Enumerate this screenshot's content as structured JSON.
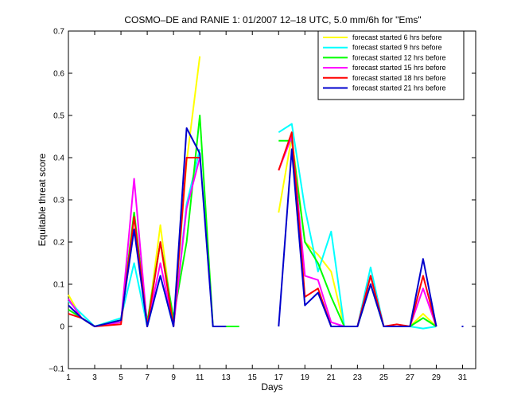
{
  "chart_data": {
    "type": "line",
    "title": "COSMO–DE and RANIE 1: 01/2007 12–18 UTC, 5.0 mm/6h for \"Ems\"",
    "xlabel": "Days",
    "ylabel": "Equitable threat score",
    "xlim": [
      1,
      32
    ],
    "ylim": [
      -0.1,
      0.7
    ],
    "x_ticks": [
      "1",
      "3",
      "5",
      "7",
      "9",
      "11",
      "13",
      "15",
      "17",
      "19",
      "21",
      "23",
      "25",
      "27",
      "29",
      "31"
    ],
    "y_ticks": [
      "−0.1",
      "0",
      "0.1",
      "0.2",
      "0.3",
      "0.4",
      "0.5",
      "0.6",
      "0.7"
    ],
    "legend_position": "top-right",
    "grid": false,
    "series": [
      {
        "name": "forecast started 6 hrs before",
        "color": "#ffff00",
        "values": [
          [
            1,
            0.075
          ],
          [
            2,
            0.02
          ],
          [
            3,
            0
          ],
          [
            5,
            0.01
          ],
          [
            6,
            0.27
          ],
          [
            7,
            0
          ],
          [
            8,
            0.24
          ],
          [
            9,
            0
          ],
          [
            10,
            0.39
          ],
          [
            11,
            0.64
          ],
          null,
          [
            17,
            0.27
          ],
          [
            18,
            0.45
          ],
          [
            19,
            0.2
          ],
          [
            20,
            0.17
          ],
          [
            21,
            0.13
          ],
          [
            22,
            0
          ],
          [
            23,
            0
          ],
          [
            24,
            0.12
          ],
          [
            25,
            0
          ],
          [
            26,
            0
          ],
          [
            27,
            0
          ],
          [
            28,
            0.03
          ],
          [
            29,
            0
          ]
        ]
      },
      {
        "name": "forecast started 9 hrs before",
        "color": "#00ffff",
        "values": [
          [
            1,
            0.06
          ],
          [
            2,
            0.03
          ],
          [
            3,
            0
          ],
          [
            5,
            0.02
          ],
          [
            6,
            0.15
          ],
          [
            7,
            0
          ],
          [
            8,
            0.12
          ],
          [
            9,
            0
          ],
          [
            10,
            0.29
          ],
          [
            11,
            0.42
          ],
          null,
          [
            17,
            0.46
          ],
          [
            18,
            0.48
          ],
          [
            19,
            0.28
          ],
          [
            20,
            0.13
          ],
          [
            21,
            0.225
          ],
          [
            22,
            0
          ],
          [
            23,
            0
          ],
          [
            24,
            0.14
          ],
          [
            25,
            0
          ],
          [
            26,
            0
          ],
          [
            27,
            0
          ],
          [
            28,
            -0.005
          ],
          [
            29,
            0
          ]
        ]
      },
      {
        "name": "forecast started 12 hrs before",
        "color": "#00ff00",
        "values": [
          [
            1,
            0.04
          ],
          [
            2,
            0.02
          ],
          [
            3,
            0
          ],
          [
            5,
            0.015
          ],
          [
            6,
            0.27
          ],
          [
            7,
            0.01
          ],
          [
            8,
            0.2
          ],
          [
            9,
            0.02
          ],
          [
            10,
            0.2
          ],
          [
            11,
            0.5
          ],
          [
            12,
            0
          ],
          [
            13,
            0
          ],
          [
            14,
            0
          ],
          null,
          [
            17,
            0.44
          ],
          [
            18,
            0.44
          ],
          [
            19,
            0.2
          ],
          [
            20,
            0.15
          ],
          [
            21,
            0.07
          ],
          [
            22,
            0
          ],
          [
            23,
            0
          ],
          [
            24,
            0.1
          ],
          [
            25,
            0
          ],
          [
            26,
            0
          ],
          [
            27,
            0
          ],
          [
            28,
            0.02
          ],
          [
            29,
            0
          ]
        ]
      },
      {
        "name": "forecast started 15 hrs before",
        "color": "#ff00ff",
        "values": [
          [
            1,
            0.065
          ],
          [
            2,
            0.02
          ],
          [
            3,
            0
          ],
          [
            5,
            0.01
          ],
          [
            6,
            0.35
          ],
          [
            7,
            0
          ],
          [
            8,
            0.15
          ],
          [
            9,
            0
          ],
          [
            10,
            0.28
          ],
          [
            11,
            0.4
          ],
          null,
          [
            17,
            0.37
          ],
          [
            18,
            0.45
          ],
          [
            19,
            0.12
          ],
          [
            20,
            0.11
          ],
          [
            21,
            0.01
          ],
          [
            22,
            0
          ],
          [
            23,
            0
          ],
          [
            24,
            0.12
          ],
          [
            25,
            0
          ],
          [
            26,
            0
          ],
          [
            27,
            0
          ],
          [
            28,
            0.09
          ],
          [
            29,
            0
          ]
        ]
      },
      {
        "name": "forecast started 18 hrs before",
        "color": "#ff0000",
        "values": [
          [
            1,
            0.03
          ],
          [
            2,
            0.02
          ],
          [
            3,
            0
          ],
          [
            5,
            0.005
          ],
          [
            6,
            0.26
          ],
          [
            7,
            0
          ],
          [
            8,
            0.2
          ],
          [
            9,
            0
          ],
          [
            10,
            0.4
          ],
          [
            11,
            0.4
          ],
          null,
          [
            17,
            0.37
          ],
          [
            18,
            0.46
          ],
          [
            19,
            0.07
          ],
          [
            20,
            0.09
          ],
          [
            21,
            0
          ],
          [
            22,
            0
          ],
          [
            23,
            0
          ],
          [
            24,
            0.12
          ],
          [
            25,
            0
          ],
          [
            26,
            0.005
          ],
          [
            27,
            0
          ],
          [
            28,
            0.12
          ],
          [
            29,
            0
          ]
        ]
      },
      {
        "name": "forecast started 21 hrs before",
        "color": "#0000cc",
        "values": [
          [
            1,
            0.05
          ],
          [
            2,
            0.02
          ],
          [
            3,
            0
          ],
          [
            5,
            0.015
          ],
          [
            6,
            0.23
          ],
          [
            7,
            0
          ],
          [
            8,
            0.12
          ],
          [
            9,
            0
          ],
          [
            10,
            0.47
          ],
          [
            11,
            0.41
          ],
          [
            12,
            0
          ],
          [
            13,
            0
          ],
          null,
          [
            17,
            0
          ],
          [
            18,
            0.42
          ],
          [
            19,
            0.05
          ],
          [
            20,
            0.08
          ],
          [
            21,
            0
          ],
          [
            22,
            0
          ],
          [
            23,
            0
          ],
          [
            24,
            0.1
          ],
          [
            25,
            0
          ],
          [
            26,
            0
          ],
          [
            27,
            0
          ],
          [
            28,
            0.16
          ],
          [
            29,
            0
          ],
          null,
          [
            31,
            0
          ]
        ]
      }
    ]
  }
}
